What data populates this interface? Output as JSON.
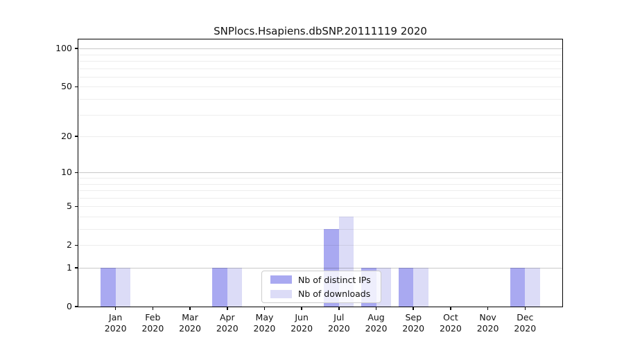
{
  "window": {
    "background": "#ffffff"
  },
  "chart_data": {
    "type": "bar",
    "title": "SNPlocs.Hsapiens.dbSNP.20111119 2020",
    "x": {
      "months": [
        "Jan",
        "Feb",
        "Mar",
        "Apr",
        "May",
        "Jun",
        "Jul",
        "Aug",
        "Sep",
        "Oct",
        "Nov",
        "Dec"
      ],
      "year": "2020"
    },
    "series": [
      {
        "name": "Nb of distinct IPs",
        "color": "#a9a9f1",
        "values": [
          1,
          0,
          0,
          1,
          0,
          0,
          3,
          1,
          1,
          0,
          0,
          1
        ]
      },
      {
        "name": "Nb of downloads",
        "color": "#dcdcf7",
        "values": [
          1,
          0,
          0,
          1,
          0,
          0,
          4,
          1,
          1,
          0,
          0,
          1
        ]
      }
    ],
    "yscale": "log10(1+x)",
    "ylim": [
      0,
      118
    ],
    "yticks": [
      0,
      1,
      2,
      5,
      10,
      20,
      50,
      100
    ],
    "gridlines": {
      "major": [
        1,
        10,
        100
      ],
      "minor": [
        2,
        3,
        4,
        5,
        6,
        7,
        8,
        9,
        20,
        30,
        40,
        50,
        60,
        70,
        80,
        90
      ],
      "major_color": "#c8c8c8",
      "minor_color": "#ededed"
    },
    "legend": {
      "position": "lower-center",
      "frame_color": "#cccccc"
    },
    "grid": "on"
  }
}
